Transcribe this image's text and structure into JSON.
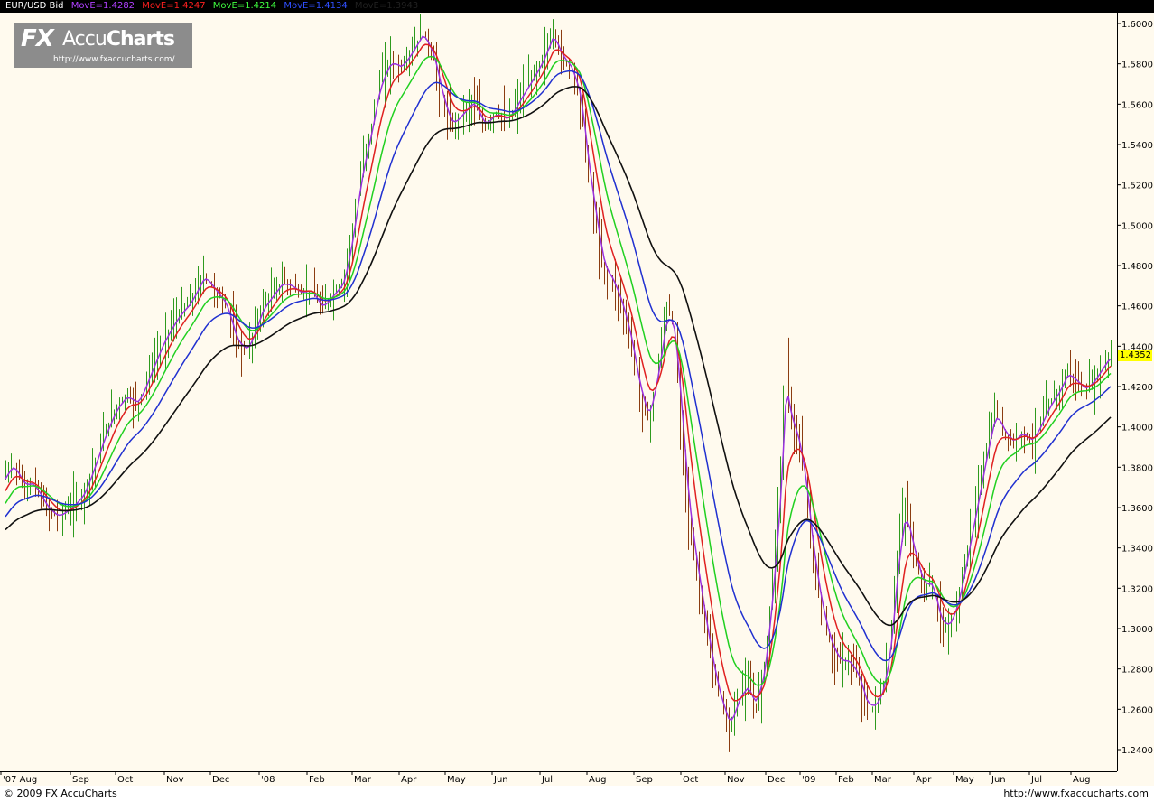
{
  "header": {
    "symbol": "EUR/USD Bid",
    "indicators": [
      {
        "label": "MovE=1.4282",
        "color": "#b040ff"
      },
      {
        "label": "MovE=1.4247",
        "color": "#ff2020"
      },
      {
        "label": "MovE=1.4214",
        "color": "#40ff40"
      },
      {
        "label": "MovE=1.4134",
        "color": "#3050ff"
      },
      {
        "label": "MovE=1.3943",
        "color": "#202020"
      }
    ]
  },
  "logo": {
    "brand_fx": "FX",
    "brand_accu": "Accu",
    "brand_charts": "Charts",
    "url": "http://www.fxaccucharts.com/"
  },
  "footer": {
    "copyright": "© 2009 FX AccuCharts",
    "url": "http://www.fxaccucharts.com"
  },
  "chart_data": {
    "type": "line",
    "price_axis": {
      "min": 1.23,
      "max": 1.605,
      "ticks": [
        "1.6000",
        "1.5800",
        "1.5600",
        "1.5400",
        "1.5200",
        "1.5000",
        "1.4800",
        "1.4600",
        "1.4400",
        "1.4200",
        "1.4000",
        "1.3800",
        "1.3600",
        "1.3400",
        "1.3200",
        "1.3000",
        "1.2800",
        "1.2600",
        "1.2400"
      ]
    },
    "last_price": "1.4352",
    "time_axis": [
      "'07 Aug",
      "Sep",
      "Oct",
      "Nov",
      "Dec",
      "'08",
      "Feb",
      "Mar",
      "Apr",
      "May",
      "Jun",
      "Jul",
      "Aug",
      "Sep",
      "Oct",
      "Nov",
      "Dec",
      "'09",
      "Feb",
      "Mar",
      "Apr",
      "May",
      "Jun",
      "Jul",
      "Aug"
    ],
    "background": "#fffaee",
    "price_series": {
      "name": "EUR/USD Bid",
      "up_color": "#2e9a1e",
      "down_color": "#8b3c10",
      "x": [
        0,
        14,
        26,
        36,
        52,
        64,
        80,
        92,
        104,
        116,
        128,
        140,
        152,
        166,
        180,
        196,
        210,
        226,
        236,
        250,
        262,
        274,
        290,
        300,
        312,
        322,
        332,
        344,
        356,
        368,
        380,
        390,
        400,
        410,
        420,
        432,
        444,
        456,
        468,
        480,
        490,
        500,
        512,
        524,
        536,
        548,
        562,
        576,
        590,
        602,
        612,
        622,
        632,
        642,
        652,
        660,
        668,
        678,
        688,
        698,
        708,
        718,
        728,
        738,
        746,
        754,
        762,
        770,
        780,
        790,
        798,
        808,
        818,
        828,
        836,
        846,
        856,
        864,
        870,
        876,
        884,
        892,
        900,
        910,
        920,
        930,
        940,
        950,
        960,
        970,
        978,
        986,
        994,
        1002,
        1012,
        1022,
        1032,
        1042,
        1052,
        1062,
        1072,
        1082,
        1092,
        1102,
        1112,
        1122,
        1132,
        1142,
        1152,
        1162,
        1172,
        1182,
        1192,
        1202,
        1212,
        1220,
        1228
      ],
      "close": [
        1.373,
        1.382,
        1.37,
        1.372,
        1.359,
        1.355,
        1.361,
        1.367,
        1.382,
        1.398,
        1.41,
        1.416,
        1.411,
        1.428,
        1.443,
        1.455,
        1.462,
        1.476,
        1.468,
        1.46,
        1.44,
        1.438,
        1.46,
        1.465,
        1.472,
        1.47,
        1.466,
        1.468,
        1.458,
        1.466,
        1.472,
        1.498,
        1.53,
        1.548,
        1.572,
        1.582,
        1.578,
        1.587,
        1.596,
        1.582,
        1.56,
        1.548,
        1.556,
        1.562,
        1.548,
        1.556,
        1.552,
        1.564,
        1.574,
        1.584,
        1.596,
        1.582,
        1.578,
        1.562,
        1.52,
        1.498,
        1.476,
        1.472,
        1.46,
        1.442,
        1.416,
        1.402,
        1.43,
        1.46,
        1.45,
        1.4,
        1.352,
        1.33,
        1.302,
        1.276,
        1.262,
        1.25,
        1.268,
        1.272,
        1.26,
        1.282,
        1.33,
        1.38,
        1.44,
        1.4,
        1.392,
        1.368,
        1.332,
        1.306,
        1.29,
        1.283,
        1.284,
        1.276,
        1.26,
        1.262,
        1.272,
        1.296,
        1.342,
        1.362,
        1.335,
        1.32,
        1.322,
        1.3,
        1.302,
        1.318,
        1.343,
        1.366,
        1.39,
        1.41,
        1.396,
        1.392,
        1.398,
        1.392,
        1.402,
        1.412,
        1.418,
        1.428,
        1.422,
        1.418,
        1.424,
        1.43,
        1.4352
      ]
    },
    "series": [
      {
        "key": "ema1",
        "color": "#9a30e0",
        "lag": 2
      },
      {
        "key": "ema2",
        "color": "#e02020",
        "lag": 5
      },
      {
        "key": "ema3",
        "color": "#20d020",
        "lag": 9
      },
      {
        "key": "ema4",
        "color": "#2030d0",
        "lag": 16
      },
      {
        "key": "ema5",
        "color": "#101010",
        "lag": 30
      }
    ]
  }
}
